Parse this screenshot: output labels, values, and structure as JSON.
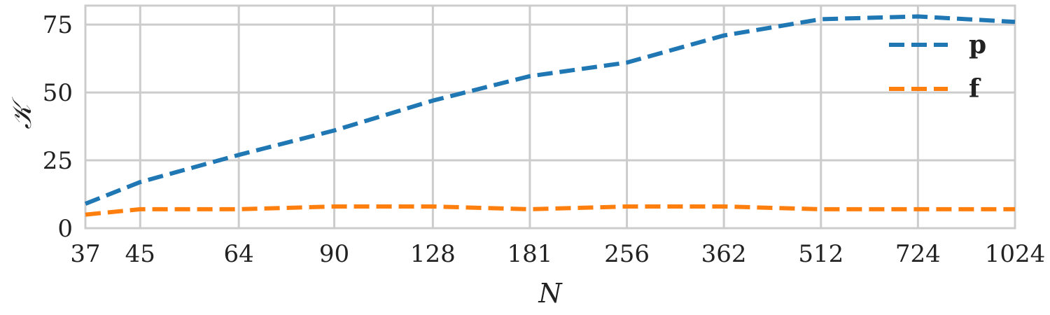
{
  "chart_data": {
    "type": "line",
    "x_scale": "log2",
    "xlabel": "N",
    "ylabel": "𝒦",
    "x": [
      37,
      45,
      64,
      90,
      128,
      181,
      256,
      362,
      512,
      724,
      1024
    ],
    "x_tick_labels": [
      "37",
      "45",
      "64",
      "90",
      "128",
      "181",
      "256",
      "362",
      "512",
      "724",
      "1024"
    ],
    "xlim": [
      37,
      1024
    ],
    "ylim": [
      0,
      82
    ],
    "y_ticks": [
      0,
      25,
      50,
      75
    ],
    "y_tick_labels": [
      "0",
      "25",
      "50",
      "75"
    ],
    "grid": true,
    "legend_position": "top-right",
    "series": [
      {
        "name": "p",
        "color": "#1f77b4",
        "line_style": "dashed",
        "values": [
          9,
          17,
          27,
          36,
          47,
          56,
          61,
          71,
          77,
          78,
          76
        ]
      },
      {
        "name": "f",
        "color": "#ff7f0e",
        "line_style": "dashed",
        "values": [
          5,
          7,
          7,
          8,
          8,
          7,
          8,
          8,
          7,
          7,
          7
        ]
      }
    ]
  }
}
